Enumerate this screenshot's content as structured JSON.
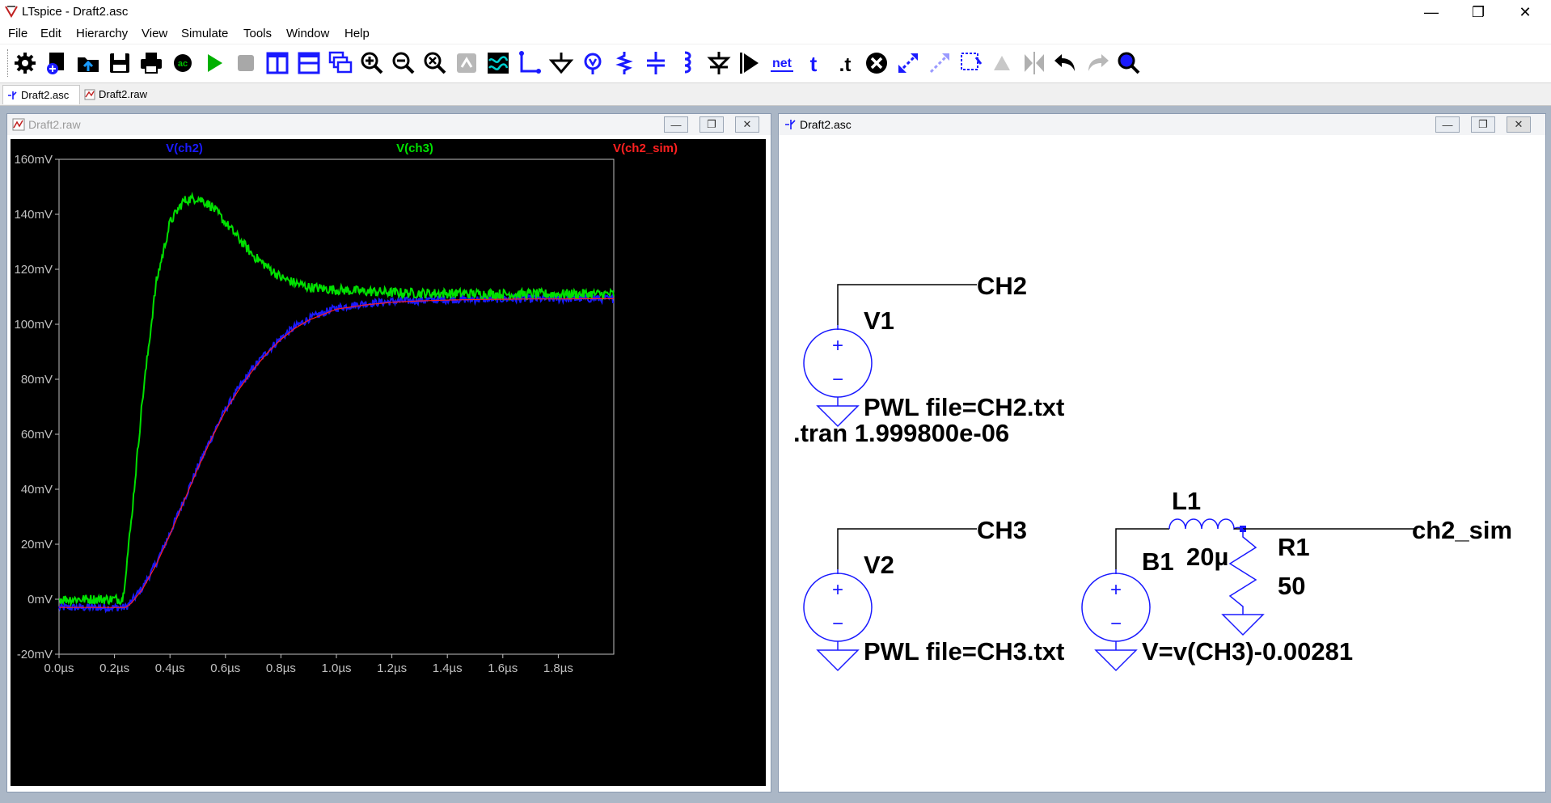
{
  "window": {
    "title": "LTspice - Draft2.asc",
    "minimize_label": "—",
    "maximize_label": "❐",
    "close_label": "✕"
  },
  "menu": [
    "File",
    "Edit",
    "Hierarchy",
    "View",
    "Simulate",
    "Tools",
    "Window",
    "Help"
  ],
  "toolbar": {
    "icons": [
      "gear-icon",
      "new-schematic-icon",
      "open-icon",
      "save-icon",
      "print-icon",
      "ac-analysis-icon",
      "run-icon",
      "halt-icon",
      "tile-vertical-icon",
      "tile-horizontal-icon",
      "cascade-icon",
      "zoom-in-icon",
      "zoom-out-icon",
      "zoom-fit-icon",
      "autorange-icon",
      "waveform-icon",
      "wire-icon",
      "ground-icon",
      "label-net-icon",
      "resistor-icon",
      "capacitor-icon",
      "inductor-icon",
      "diode-icon",
      "component-icon",
      "net-label-icon",
      "text-icon",
      "spice-directive-icon",
      "delete-icon",
      "move-icon",
      "drag-icon",
      "rotate-icon",
      "mirror-icon",
      "undo-icon",
      "redo-icon",
      "find-icon"
    ],
    "net_label": "net",
    "text_label": "t",
    "directive_label": ".t"
  },
  "tabs": [
    {
      "label": "Draft2.asc",
      "active": true
    },
    {
      "label": "Draft2.raw",
      "active": false
    }
  ],
  "waveform_window": {
    "title": "Draft2.raw",
    "chart_data": {
      "type": "line",
      "title": "",
      "xlabel": "",
      "ylabel": "",
      "xlim": [
        0,
        2.0
      ],
      "ylim": [
        -20,
        160
      ],
      "x_ticks": [
        "0.0µs",
        "0.2µs",
        "0.4µs",
        "0.6µs",
        "0.8µs",
        "1.0µs",
        "1.2µs",
        "1.4µs",
        "1.6µs",
        "1.8µs"
      ],
      "y_ticks": [
        "160mV",
        "140mV",
        "120mV",
        "100mV",
        "80mV",
        "60mV",
        "40mV",
        "20mV",
        "0mV",
        "-20mV"
      ],
      "grid": false,
      "legend_position": "top",
      "background": "#000000",
      "x_unit": "µs",
      "y_unit": "mV",
      "series": [
        {
          "name": "V(ch2)",
          "color": "#1a1aff",
          "x": [
            0,
            0.1,
            0.2,
            0.24,
            0.26,
            0.3,
            0.35,
            0.4,
            0.45,
            0.5,
            0.55,
            0.6,
            0.65,
            0.7,
            0.75,
            0.8,
            0.85,
            0.9,
            0.95,
            1.0,
            1.1,
            1.2,
            1.3,
            1.4,
            1.5,
            1.6,
            1.7,
            1.8,
            1.9,
            2.0
          ],
          "y": [
            -3,
            -3,
            -3,
            -3,
            -1,
            4,
            13,
            24,
            36,
            48,
            59,
            69,
            77,
            84,
            90,
            95,
            99,
            102,
            104,
            106,
            107.5,
            108.3,
            108.7,
            109,
            109.1,
            109.2,
            109.2,
            109.3,
            109.3,
            109.3
          ]
        },
        {
          "name": "V(ch3)",
          "color": "#00e000",
          "x": [
            0,
            0.1,
            0.2,
            0.23,
            0.26,
            0.3,
            0.35,
            0.4,
            0.45,
            0.5,
            0.55,
            0.6,
            0.65,
            0.7,
            0.75,
            0.8,
            0.85,
            0.9,
            0.95,
            1.0,
            1.1,
            1.2,
            1.3,
            1.4,
            1.5,
            1.6,
            1.7,
            1.8,
            1.9,
            2.0
          ],
          "y": [
            0,
            0,
            0,
            0,
            28,
            72,
            115,
            137,
            145,
            146,
            143,
            137,
            131,
            125,
            121,
            117,
            115,
            113.5,
            113,
            112.5,
            112,
            111.5,
            111.3,
            111.2,
            111.1,
            111,
            111,
            111,
            111,
            111
          ]
        },
        {
          "name": "V(ch2_sim)",
          "color": "#ff2020",
          "x": [
            0,
            0.1,
            0.2,
            0.24,
            0.26,
            0.3,
            0.35,
            0.4,
            0.45,
            0.5,
            0.55,
            0.6,
            0.65,
            0.7,
            0.75,
            0.8,
            0.85,
            0.9,
            0.95,
            1.0,
            1.1,
            1.2,
            1.3,
            1.4,
            1.5,
            1.6,
            1.7,
            1.8,
            1.9,
            2.0
          ],
          "y": [
            -3,
            -3,
            -3,
            -3,
            -1.5,
            3.5,
            12.5,
            23.5,
            35.5,
            47.5,
            58.5,
            68.5,
            76.5,
            83.5,
            89.5,
            94.5,
            98.5,
            101.5,
            103.5,
            105.5,
            107,
            108,
            108.5,
            108.8,
            109,
            109.1,
            109.2,
            109.2,
            109.3,
            109.3
          ]
        }
      ]
    }
  },
  "schematic_window": {
    "title": "Draft2.asc",
    "texts": {
      "ch2": "CH2",
      "v1": "V1",
      "pwl1": "PWL file=CH2.txt",
      "tran": ".tran 1.999800e-06",
      "ch3": "CH3",
      "v2": "V2",
      "pwl2": "PWL file=CH3.txt",
      "l1": "L1",
      "l1_val": "20µ",
      "b1": "B1",
      "r1": "R1",
      "r1_val": "50",
      "b1_expr": "V=v(CH3)-0.00281",
      "ch2_sim": "ch2_sim",
      "plus": "+",
      "minus": "−"
    },
    "wire_color": "#000000",
    "component_color": "#1a1aff"
  }
}
